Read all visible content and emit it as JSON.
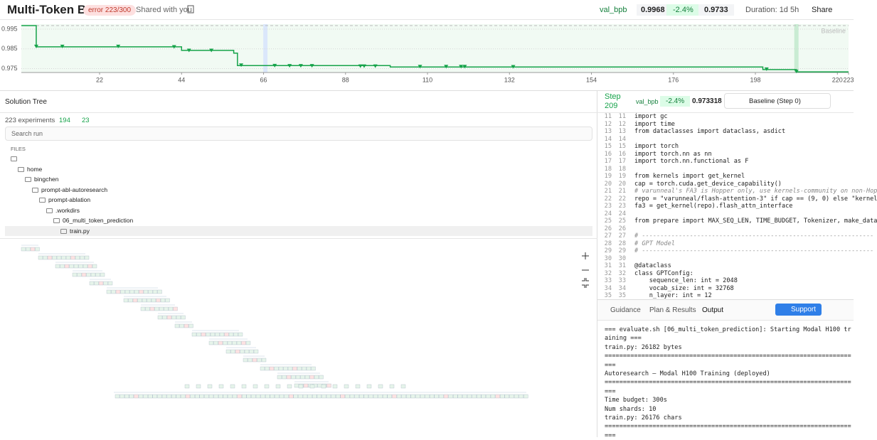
{
  "header": {
    "title": "Multi-Token BPB",
    "status": "error 223/300",
    "shared": "Shared with you",
    "metric": "val_bpb",
    "baseline_value": "0.9968",
    "change": "-2.4%",
    "best_value": "0.9733",
    "duration": "Duration: 1d 5h",
    "share": "Share"
  },
  "chart": {
    "type": "line",
    "xlim": [
      1,
      223
    ],
    "ylim": [
      0.973,
      0.9975
    ],
    "xticks": [
      22,
      44,
      66,
      88,
      110,
      132,
      154,
      176,
      198,
      220,
      223
    ],
    "yticks": [
      0.975,
      0.985,
      0.995
    ],
    "baseline": {
      "label": "Baseline",
      "value": 0.9968
    },
    "color": "#16a34a",
    "best": {
      "x": [
        1,
        5,
        5,
        44,
        44,
        58,
        58,
        59,
        59,
        100,
        100,
        200,
        200,
        209,
        209,
        223
      ],
      "y": [
        0.9968,
        0.9968,
        0.986,
        0.986,
        0.9842,
        0.9842,
        0.9828,
        0.9828,
        0.9765,
        0.9765,
        0.9758,
        0.9758,
        0.9745,
        0.9745,
        0.9733,
        0.9733
      ]
    },
    "points": {
      "x": [
        5,
        12,
        27,
        42,
        46,
        52,
        60,
        69,
        73,
        76,
        79,
        92,
        93,
        96,
        108,
        115,
        119,
        120,
        133,
        201,
        209
      ],
      "y": [
        0.986,
        0.986,
        0.986,
        0.9858,
        0.984,
        0.984,
        0.9765,
        0.9763,
        0.9762,
        0.9762,
        0.9762,
        0.976,
        0.976,
        0.976,
        0.9758,
        0.9758,
        0.9758,
        0.9758,
        0.9757,
        0.9745,
        0.9733
      ]
    }
  },
  "tree_panel": {
    "title": "Solution Tree",
    "experiments": "223 experiments",
    "good": "194",
    "improved": "23",
    "search": "Search run",
    "files": "FILES",
    "path": [
      "home",
      "bingchen",
      "prompt-abl-autoresearch",
      "prompt-ablation",
      ".workdirs",
      "06_multi_token_prediction"
    ],
    "file": "train.py"
  },
  "detail": {
    "step_label": "Step",
    "step": "209",
    "metric": "val_bpb",
    "change": "-2.4%",
    "value": "0.973318",
    "compare": "Baseline (Step 0)",
    "code": [
      {
        "n": 11,
        "text": "import gc"
      },
      {
        "n": 12,
        "text": "import time"
      },
      {
        "n": 13,
        "text": "from dataclasses import dataclass, asdict"
      },
      {
        "n": 14
      },
      {
        "n": 15,
        "text": "import torch"
      },
      {
        "n": 16,
        "text": "import torch.nn as nn"
      },
      {
        "n": 17,
        "text": "import torch.nn.functional as F"
      },
      {
        "n": 18
      },
      {
        "n": 19,
        "text": "from kernels import get_kernel"
      },
      {
        "n": 20,
        "text": "cap = torch.cuda.get_device_capability()"
      },
      {
        "n": 21,
        "text": "# varunneal's FA3 is Hopper only, use kernels-community on non-Hop"
      },
      {
        "n": 22,
        "text": "repo = \"varunneal/flash-attention-3\" if cap == (9, 0) else \"kernel"
      },
      {
        "n": 23,
        "text": "fa3 = get_kernel(repo).flash_attn_interface"
      },
      {
        "n": 24
      },
      {
        "n": 25,
        "text": "from prepare import MAX_SEQ_LEN, TIME_BUDGET, Tokenizer, make_data"
      },
      {
        "n": 26
      },
      {
        "n": 27,
        "text": "# ---------------------------------------------------------------"
      },
      {
        "n": 28,
        "text": "# GPT Model"
      },
      {
        "n": 29,
        "text": "# ---------------------------------------------------------------"
      },
      {
        "n": 30
      },
      {
        "n": 31,
        "text": "@dataclass"
      },
      {
        "n": 32,
        "text": "class GPTConfig:"
      },
      {
        "n": 33,
        "text": "    sequence_len: int = 2048"
      },
      {
        "n": 34,
        "text": "    vocab_size: int = 32768"
      },
      {
        "n": 35,
        "text": "    n_layer: int = 12"
      }
    ],
    "tabs": [
      "Guidance",
      "Plan & Results",
      "Output"
    ],
    "support": "Support",
    "output": [
      "=== evaluate.sh [06_multi_token_prediction]: Starting Modal H100 training ===",
      "train.py: 26182 bytes",
      "======================================================================",
      "Autoresearch — Modal H100 Training (deployed)",
      "======================================================================",
      "Time budget: 300s",
      "Num shards:  10",
      "train.py:    26176 chars",
      "======================================================================"
    ]
  }
}
